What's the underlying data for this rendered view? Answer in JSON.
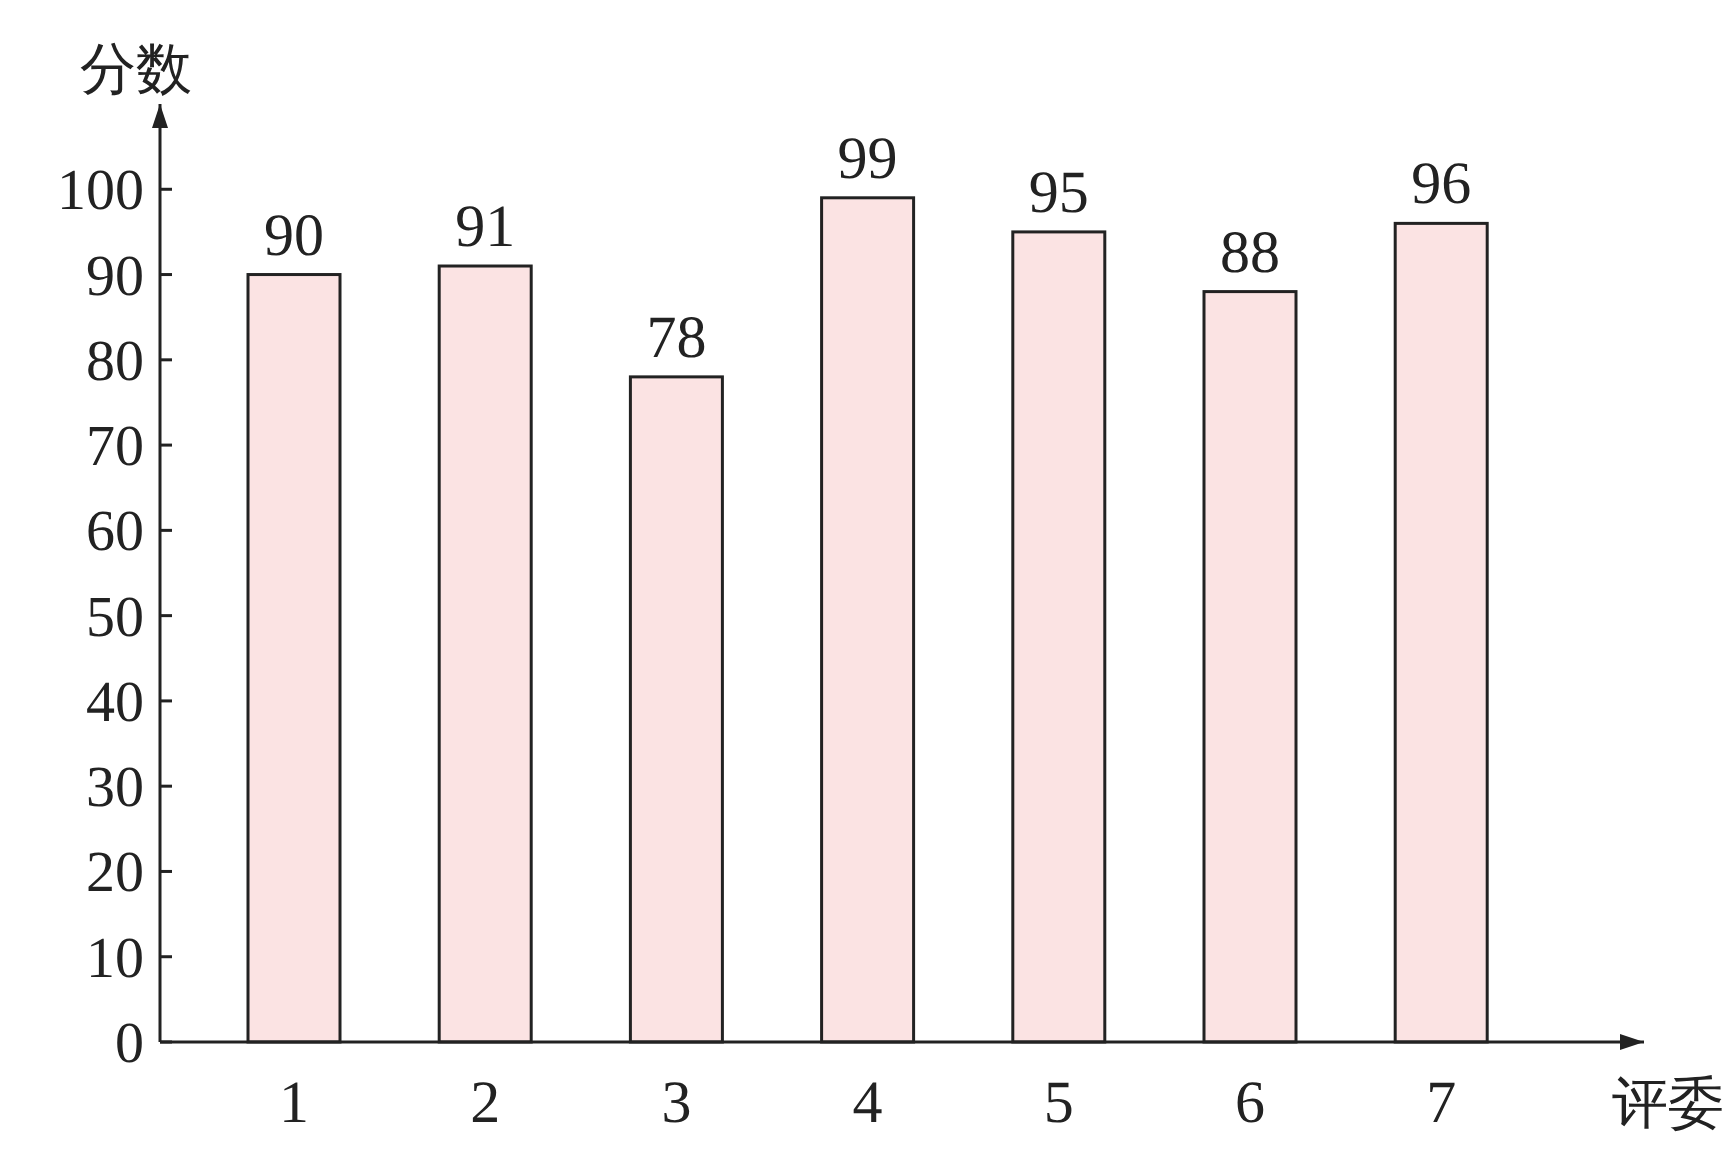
{
  "chart_data": {
    "type": "bar",
    "xlabel": "评委",
    "ylabel": "分数",
    "categories": [
      "1",
      "2",
      "3",
      "4",
      "5",
      "6",
      "7"
    ],
    "values": [
      90,
      91,
      78,
      99,
      95,
      88,
      96
    ],
    "color": "#fbe3e3",
    "ylim": [
      0,
      110
    ],
    "yticks": [
      0,
      10,
      20,
      30,
      40,
      50,
      60,
      70,
      80,
      90,
      100
    ],
    "data_labels": true,
    "grid": false
  }
}
